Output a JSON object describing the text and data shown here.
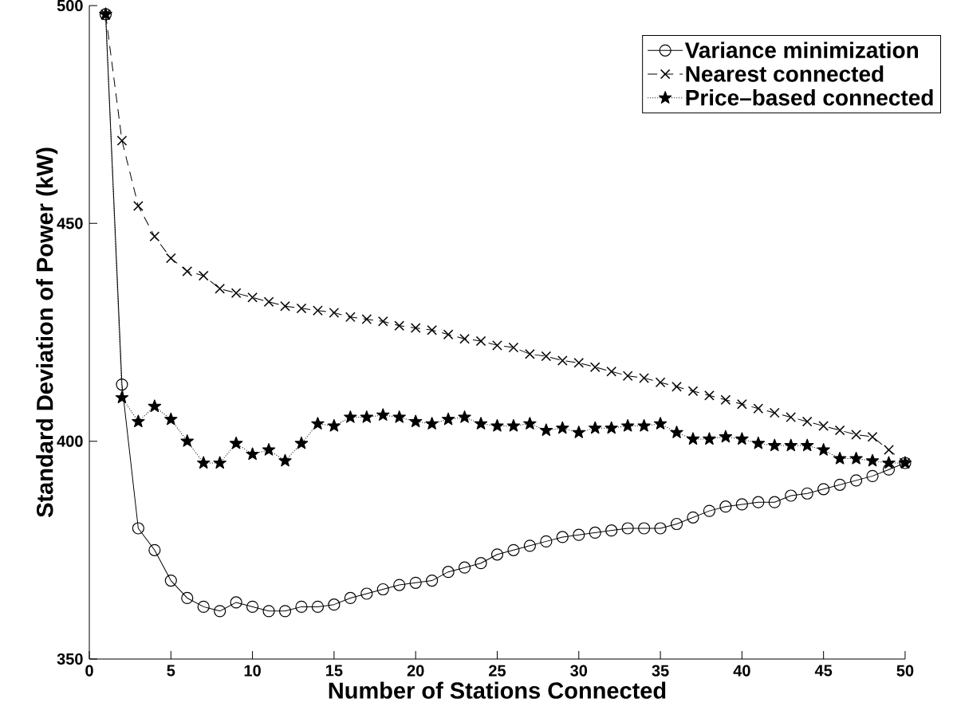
{
  "chart_data": {
    "type": "line",
    "xlabel": "Number of Stations Connected",
    "ylabel": "Standard Deviation of Power (kW)",
    "x": [
      1,
      2,
      3,
      4,
      5,
      6,
      7,
      8,
      9,
      10,
      11,
      12,
      13,
      14,
      15,
      16,
      17,
      18,
      19,
      20,
      21,
      22,
      23,
      24,
      25,
      26,
      27,
      28,
      29,
      30,
      31,
      32,
      33,
      34,
      35,
      36,
      37,
      38,
      39,
      40,
      41,
      42,
      43,
      44,
      45,
      46,
      47,
      48,
      49,
      50
    ],
    "xlim": [
      0,
      50
    ],
    "ylim": [
      350,
      500
    ],
    "xticks": [
      0,
      5,
      10,
      15,
      20,
      25,
      30,
      35,
      40,
      45,
      50
    ],
    "yticks": [
      350,
      400,
      450,
      500
    ],
    "grid": false,
    "legend": "top right",
    "series": [
      {
        "name": "Variance minimization",
        "color": "#000000",
        "marker": "circle",
        "line_style": "solid",
        "values": [
          498,
          413,
          380,
          375,
          368,
          364,
          362,
          361,
          363,
          362,
          361,
          361,
          362,
          362,
          362.5,
          364,
          365,
          366,
          367,
          367.5,
          368,
          370,
          371,
          372,
          374,
          375,
          376,
          377,
          378,
          378.5,
          379,
          379.5,
          380,
          380,
          380,
          381,
          382.5,
          384,
          385,
          385.5,
          386,
          386,
          387.5,
          388,
          389,
          390,
          391,
          392,
          393.5,
          395
        ]
      },
      {
        "name": "Nearest connected",
        "color": "#000000",
        "marker": "cross",
        "line_style": "dashed",
        "values": [
          498,
          469,
          454,
          447,
          442,
          439,
          438,
          435,
          434,
          433,
          432,
          431,
          430.5,
          430,
          429.5,
          428.5,
          428,
          427.5,
          426.5,
          426,
          425.5,
          424.5,
          423.5,
          423,
          422,
          421.5,
          420,
          419.5,
          418.5,
          418,
          417,
          416,
          415,
          414.5,
          413.5,
          412.5,
          411.5,
          410.5,
          409.5,
          408.5,
          407.5,
          406.5,
          405.5,
          404.5,
          403.5,
          402.5,
          401.5,
          401,
          398,
          395
        ]
      },
      {
        "name": "Price–based connected",
        "color": "#000000",
        "marker": "star",
        "line_style": "dotted",
        "values": [
          498,
          410,
          404.5,
          408,
          405,
          400,
          395,
          395,
          399.5,
          397,
          398,
          395.5,
          399.5,
          404,
          403.5,
          405.5,
          405.5,
          406,
          405.5,
          404.5,
          404,
          405,
          405.5,
          404,
          403.5,
          403.5,
          404,
          402.5,
          403,
          402,
          403,
          403,
          403.5,
          403.5,
          404,
          402,
          400.5,
          400.5,
          401,
          400.5,
          399.5,
          399,
          399,
          399,
          398,
          396,
          396,
          395.5,
          395,
          395
        ]
      }
    ]
  }
}
